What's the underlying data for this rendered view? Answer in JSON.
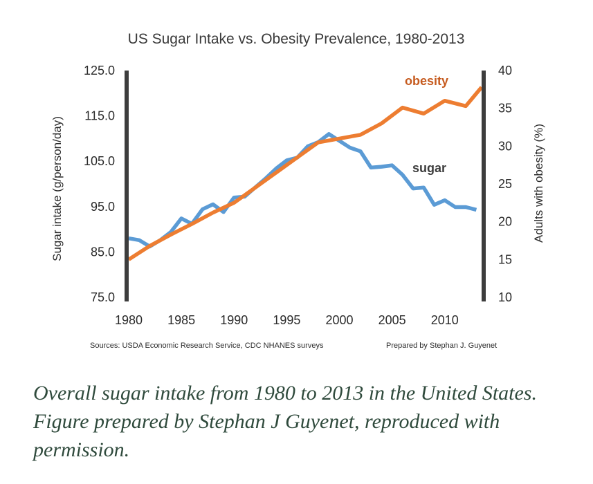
{
  "chart_data": {
    "type": "line",
    "title": "US Sugar Intake vs. Obesity Prevalence, 1980-2013",
    "xlabel": "",
    "x_ticks": [
      "1980",
      "1985",
      "1990",
      "1995",
      "2000",
      "2005",
      "2010"
    ],
    "xlim": [
      1980,
      2013.5
    ],
    "y_left": {
      "label": "Sugar intake (g/person/day)",
      "lim": [
        75,
        125
      ],
      "ticks": [
        "75.0",
        "85.0",
        "95.0",
        "105.0",
        "115.0",
        "125.0"
      ]
    },
    "y_right": {
      "label": "Adults with obesity (%)",
      "lim": [
        10,
        40
      ],
      "ticks": [
        "10",
        "15",
        "20",
        "25",
        "30",
        "35",
        "40"
      ]
    },
    "series": [
      {
        "name": "sugar",
        "axis": "left",
        "color": "#5b9bd5",
        "x": [
          1980,
          1981,
          1982,
          1983,
          1984,
          1985,
          1986,
          1987,
          1988,
          1989,
          1990,
          1991,
          1992,
          1993,
          1994,
          1995,
          1996,
          1997,
          1998,
          1999,
          2000,
          2001,
          2002,
          2003,
          2004,
          2005,
          2006,
          2007,
          2008,
          2009,
          2010,
          2011,
          2012,
          2013
        ],
        "values": [
          88.0,
          87.6,
          86.2,
          87.6,
          89.4,
          92.4,
          91.2,
          94.4,
          95.5,
          93.8,
          97.0,
          97.2,
          99.2,
          101.2,
          103.4,
          105.2,
          105.8,
          108.3,
          109.2,
          111.0,
          109.5,
          108.0,
          107.2,
          103.6,
          103.8,
          104.1,
          102.0,
          99.0,
          99.2,
          95.4,
          96.4,
          94.9,
          94.9,
          94.3
        ]
      },
      {
        "name": "obesity",
        "axis": "right",
        "color": "#ed7d31",
        "x": [
          1980,
          1982,
          1984,
          1986,
          1988,
          1990,
          1992,
          1994,
          1996,
          1998,
          2000,
          2002,
          2004,
          2006,
          2008,
          2010,
          2012,
          2013.5
        ],
        "values": [
          15.0,
          16.8,
          18.3,
          19.7,
          21.2,
          22.5,
          24.5,
          26.5,
          28.5,
          30.5,
          31.0,
          31.5,
          33.0,
          35.1,
          34.3,
          36.0,
          35.3,
          37.8
        ]
      }
    ],
    "annotations": [
      "obesity",
      "sugar"
    ]
  },
  "footer": {
    "sources": "Sources: USDA Economic Research Service, CDC NHANES surveys",
    "prepared_by": "Prepared by Stephan J. Guyenet"
  },
  "caption": " Overall sugar intake from 1980 to 2013 in the United States. Figure prepared by Stephan J Guyenet, reproduced with permission."
}
